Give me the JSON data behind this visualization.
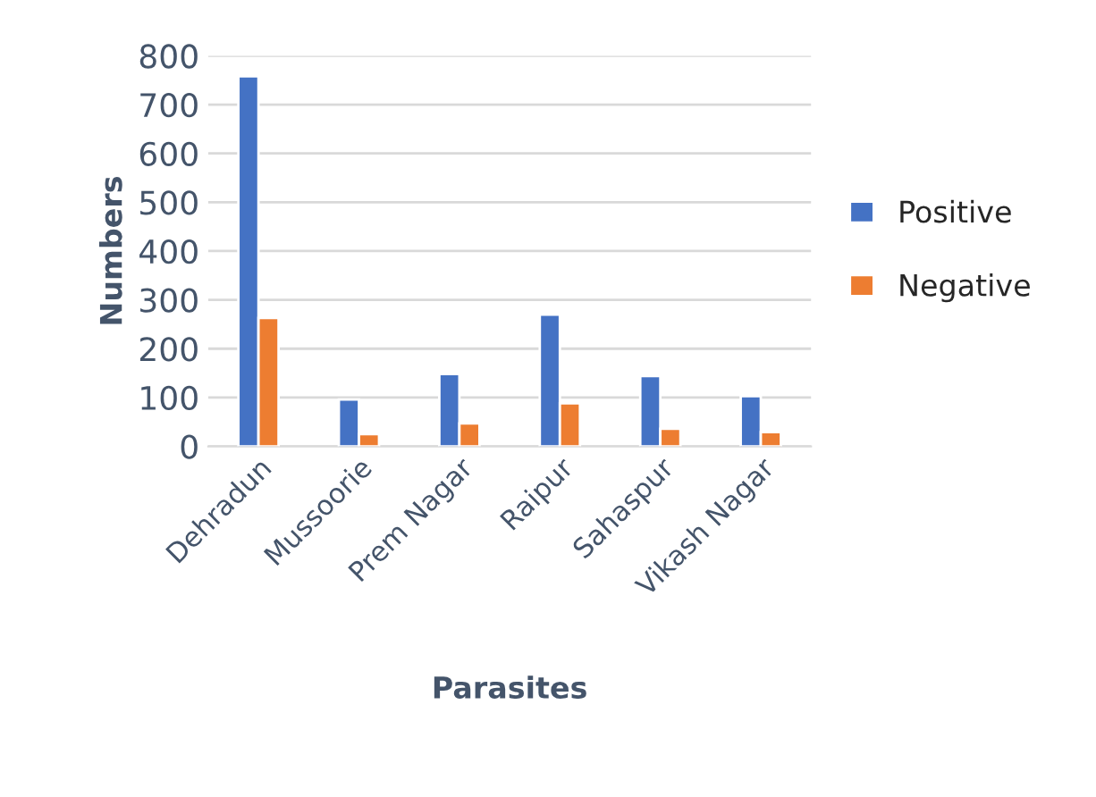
{
  "chart_data": {
    "type": "bar",
    "xlabel": "Parasites",
    "ylabel": "Numbers",
    "categories": [
      "Dehradun",
      "Mussoorie",
      "Prem Nagar",
      "Raipur",
      "Sahaspur",
      "Vikash Nagar"
    ],
    "series": [
      {
        "name": "Positive",
        "color": "#4472c4",
        "values": [
          758,
          96,
          148,
          270,
          144,
          103
        ]
      },
      {
        "name": "Negative",
        "color": "#ed7d31",
        "values": [
          263,
          25,
          47,
          88,
          36,
          29
        ]
      }
    ],
    "ylim": [
      0,
      800
    ],
    "yticks": [
      0,
      100,
      200,
      300,
      400,
      500,
      600,
      700,
      800
    ],
    "grid": "y",
    "legend": "right"
  }
}
